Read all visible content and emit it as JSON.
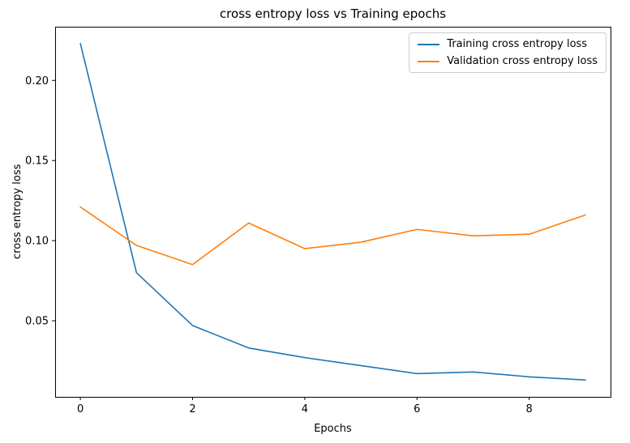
{
  "chart_data": {
    "type": "line",
    "title": "cross entropy loss vs Training epochs",
    "xlabel": "Epochs",
    "ylabel": "cross entropy loss",
    "x": [
      0,
      1,
      2,
      3,
      4,
      5,
      6,
      7,
      8,
      9
    ],
    "series": [
      {
        "name": "Training cross entropy loss",
        "color": "#1f77b4",
        "values": [
          0.223,
          0.08,
          0.047,
          0.033,
          0.027,
          0.022,
          0.017,
          0.018,
          0.015,
          0.013
        ]
      },
      {
        "name": "Validation cross entropy loss",
        "color": "#ff7f0e",
        "values": [
          0.121,
          0.097,
          0.085,
          0.111,
          0.095,
          0.099,
          0.107,
          0.103,
          0.104,
          0.116
        ]
      }
    ],
    "xlim": [
      -0.45,
      9.45
    ],
    "ylim": [
      0.0025,
      0.2335
    ],
    "xticks": [
      0,
      2,
      4,
      6,
      8
    ],
    "xtick_labels": [
      "0",
      "2",
      "4",
      "6",
      "8"
    ],
    "yticks": [
      0.05,
      0.1,
      0.15,
      0.2
    ],
    "ytick_labels": [
      "0.05",
      "0.10",
      "0.15",
      "0.20"
    ],
    "grid": false,
    "legend_position": "upper right",
    "frame_color": "#000000",
    "background_color": "#ffffff"
  }
}
